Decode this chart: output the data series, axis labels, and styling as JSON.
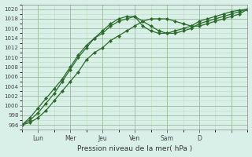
{
  "xlabel": "Pression niveau de la mer( hPa )",
  "ylim": [
    995,
    1021
  ],
  "yticks": [
    996,
    998,
    1000,
    1002,
    1004,
    1006,
    1008,
    1010,
    1012,
    1014,
    1016,
    1018,
    1020
  ],
  "bg_color": "#cce8d8",
  "plot_bg": "#d8f0e8",
  "grid_color_major": "#99bb99",
  "grid_color_minor": "#bbddbb",
  "line_color": "#2d6b2d",
  "day_tick_positions": [
    1,
    3,
    5,
    7,
    9,
    11,
    13
  ],
  "day_labels": [
    "Lun",
    "Mer",
    "Jeu",
    "Ven",
    "Sam",
    "D",
    ""
  ],
  "xlim": [
    0,
    14
  ],
  "line1_x": [
    0,
    0.5,
    1,
    1.5,
    2,
    2.5,
    3,
    3.5,
    4,
    4.5,
    5,
    5.5,
    6,
    6.5,
    7,
    7.5,
    8,
    8.5,
    9,
    9.5,
    10,
    10.5,
    11,
    11.5,
    12,
    12.5,
    13,
    13.5,
    14
  ],
  "line1_y": [
    996,
    996.5,
    997.5,
    999,
    1001,
    1003,
    1005,
    1007,
    1009.5,
    1011,
    1012,
    1013.5,
    1014.5,
    1015.5,
    1016.5,
    1017.5,
    1018,
    1018,
    1018,
    1017.5,
    1017,
    1016.5,
    1016.5,
    1017,
    1017.5,
    1018,
    1018.5,
    1019,
    1020
  ],
  "line2_x": [
    0,
    0.5,
    1,
    1.5,
    2,
    2.5,
    3,
    3.5,
    4,
    4.5,
    5,
    5.5,
    6,
    6.5,
    7,
    7.5,
    8,
    8.5,
    9,
    9.5,
    10,
    10.5,
    11,
    11.5,
    12,
    12.5,
    13,
    13.5,
    14
  ],
  "line2_y": [
    996,
    997,
    998.5,
    1000.5,
    1002.5,
    1005,
    1007.5,
    1010,
    1012,
    1014,
    1015.5,
    1017,
    1018,
    1018.5,
    1018.5,
    1017.5,
    1016.5,
    1015.5,
    1015,
    1015,
    1015.5,
    1016,
    1017,
    1017.5,
    1018,
    1018.5,
    1019,
    1019.5,
    1020
  ],
  "line3_x": [
    0,
    0.5,
    1,
    1.5,
    2,
    2.5,
    3,
    3.5,
    4,
    4.5,
    5,
    5.5,
    6,
    6.5,
    7,
    7.5,
    8,
    8.5,
    9,
    9.5,
    10,
    10.5,
    11,
    11.5,
    12,
    12.5,
    13,
    13.5,
    14
  ],
  "line3_y": [
    996,
    997.5,
    999.5,
    1001.5,
    1003.5,
    1005.5,
    1008,
    1010.5,
    1012.5,
    1014,
    1015,
    1016.5,
    1017.5,
    1018,
    1018.5,
    1016.5,
    1015.5,
    1015,
    1015,
    1015.5,
    1016,
    1016.5,
    1017.5,
    1018,
    1018.5,
    1019,
    1019.5,
    1019.8,
    1020
  ]
}
